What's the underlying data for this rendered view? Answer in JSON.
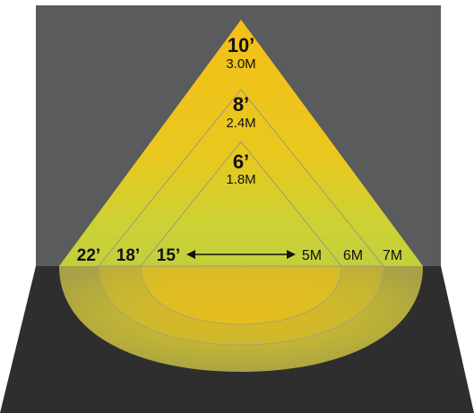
{
  "colors": {
    "wall": "#5a5b5c",
    "floor": "#2e2e2e",
    "beam_yellow": "#f2c11a",
    "beam_green": "#c4cf3a",
    "outline": "#9a9a7a"
  },
  "heights": [
    {
      "ft": "10’",
      "m": "3.0M"
    },
    {
      "ft": "8’",
      "m": "2.4M"
    },
    {
      "ft": "6’",
      "m": "1.8M"
    }
  ],
  "widths_ft": [
    "22’",
    "18’",
    "15’"
  ],
  "widths_m": [
    "5M",
    "6M",
    "7M"
  ],
  "arrow_icon": "double-arrow-icon"
}
